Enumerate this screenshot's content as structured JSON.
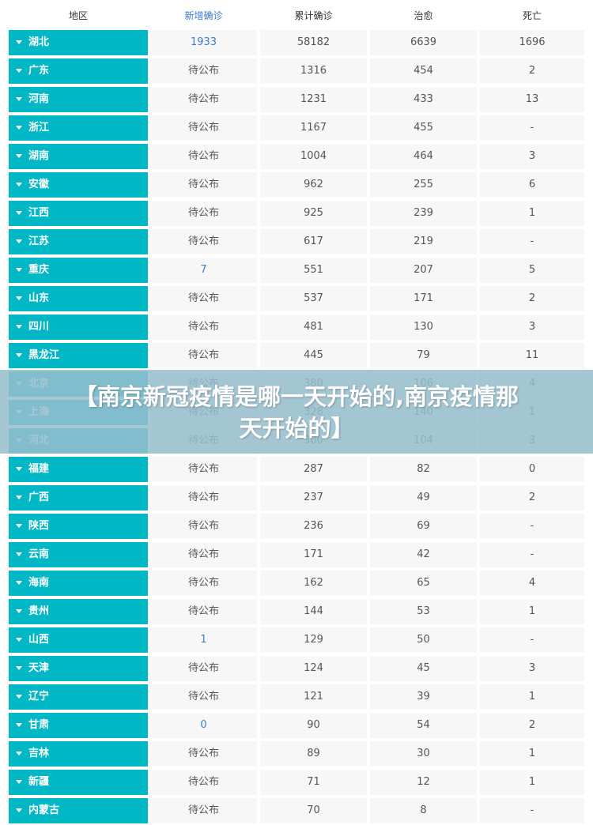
{
  "header": {
    "region": "地区",
    "new_confirmed": "新增确诊",
    "total_confirmed": "累计确诊",
    "cured": "治愈",
    "deaths": "死亡"
  },
  "rows": [
    {
      "region": "湖北",
      "new": "1933",
      "total": "58182",
      "cured": "6639",
      "deaths": "1696",
      "new_is_number": true
    },
    {
      "region": "广东",
      "new": "待公布",
      "total": "1316",
      "cured": "454",
      "deaths": "2"
    },
    {
      "region": "河南",
      "new": "待公布",
      "total": "1231",
      "cured": "433",
      "deaths": "13"
    },
    {
      "region": "浙江",
      "new": "待公布",
      "total": "1167",
      "cured": "455",
      "deaths": "-"
    },
    {
      "region": "湖南",
      "new": "待公布",
      "total": "1004",
      "cured": "464",
      "deaths": "3"
    },
    {
      "region": "安徽",
      "new": "待公布",
      "total": "962",
      "cured": "255",
      "deaths": "6"
    },
    {
      "region": "江西",
      "new": "待公布",
      "total": "925",
      "cured": "239",
      "deaths": "1"
    },
    {
      "region": "江苏",
      "new": "待公布",
      "total": "617",
      "cured": "219",
      "deaths": "-"
    },
    {
      "region": "重庆",
      "new": "7",
      "total": "551",
      "cured": "207",
      "deaths": "5",
      "new_is_number": true
    },
    {
      "region": "山东",
      "new": "待公布",
      "total": "537",
      "cured": "171",
      "deaths": "2"
    },
    {
      "region": "四川",
      "new": "待公布",
      "total": "481",
      "cured": "130",
      "deaths": "3"
    },
    {
      "region": "黑龙江",
      "new": "待公布",
      "total": "445",
      "cured": "79",
      "deaths": "11"
    },
    {
      "region": "北京",
      "new": "待公布",
      "total": "380",
      "cured": "106",
      "deaths": "4"
    },
    {
      "region": "上海",
      "new": "待公布",
      "total": "328",
      "cured": "140",
      "deaths": "1"
    },
    {
      "region": "河北",
      "new": "待公布",
      "total": "300",
      "cured": "104",
      "deaths": "3"
    },
    {
      "region": "福建",
      "new": "待公布",
      "total": "287",
      "cured": "82",
      "deaths": "0"
    },
    {
      "region": "广西",
      "new": "待公布",
      "total": "237",
      "cured": "49",
      "deaths": "2"
    },
    {
      "region": "陕西",
      "new": "待公布",
      "total": "236",
      "cured": "69",
      "deaths": "-"
    },
    {
      "region": "云南",
      "new": "待公布",
      "total": "171",
      "cured": "42",
      "deaths": "-"
    },
    {
      "region": "海南",
      "new": "待公布",
      "total": "162",
      "cured": "65",
      "deaths": "4"
    },
    {
      "region": "贵州",
      "new": "待公布",
      "total": "144",
      "cured": "53",
      "deaths": "1"
    },
    {
      "region": "山西",
      "new": "1",
      "total": "129",
      "cured": "50",
      "deaths": "-",
      "new_is_number": true
    },
    {
      "region": "天津",
      "new": "待公布",
      "total": "124",
      "cured": "45",
      "deaths": "3"
    },
    {
      "region": "辽宁",
      "new": "待公布",
      "total": "121",
      "cured": "39",
      "deaths": "1"
    },
    {
      "region": "甘肃",
      "new": "0",
      "total": "90",
      "cured": "54",
      "deaths": "2",
      "new_is_number": true
    },
    {
      "region": "吉林",
      "new": "待公布",
      "total": "89",
      "cured": "30",
      "deaths": "1"
    },
    {
      "region": "新疆",
      "new": "待公布",
      "total": "71",
      "cured": "12",
      "deaths": "1"
    },
    {
      "region": "内蒙古",
      "new": "待公布",
      "total": "70",
      "cured": "8",
      "deaths": "-"
    }
  ],
  "overlay": {
    "line1": "【南京新冠疫情是哪一天开始的,南京疫情那",
    "line2": "天开始的】"
  },
  "colors": {
    "region_bg": "#00b7c6",
    "new_number": "#3a7bd5",
    "cell_bg": "#f7f7f7"
  },
  "icons": {
    "region_expand": "caret-down-icon"
  }
}
